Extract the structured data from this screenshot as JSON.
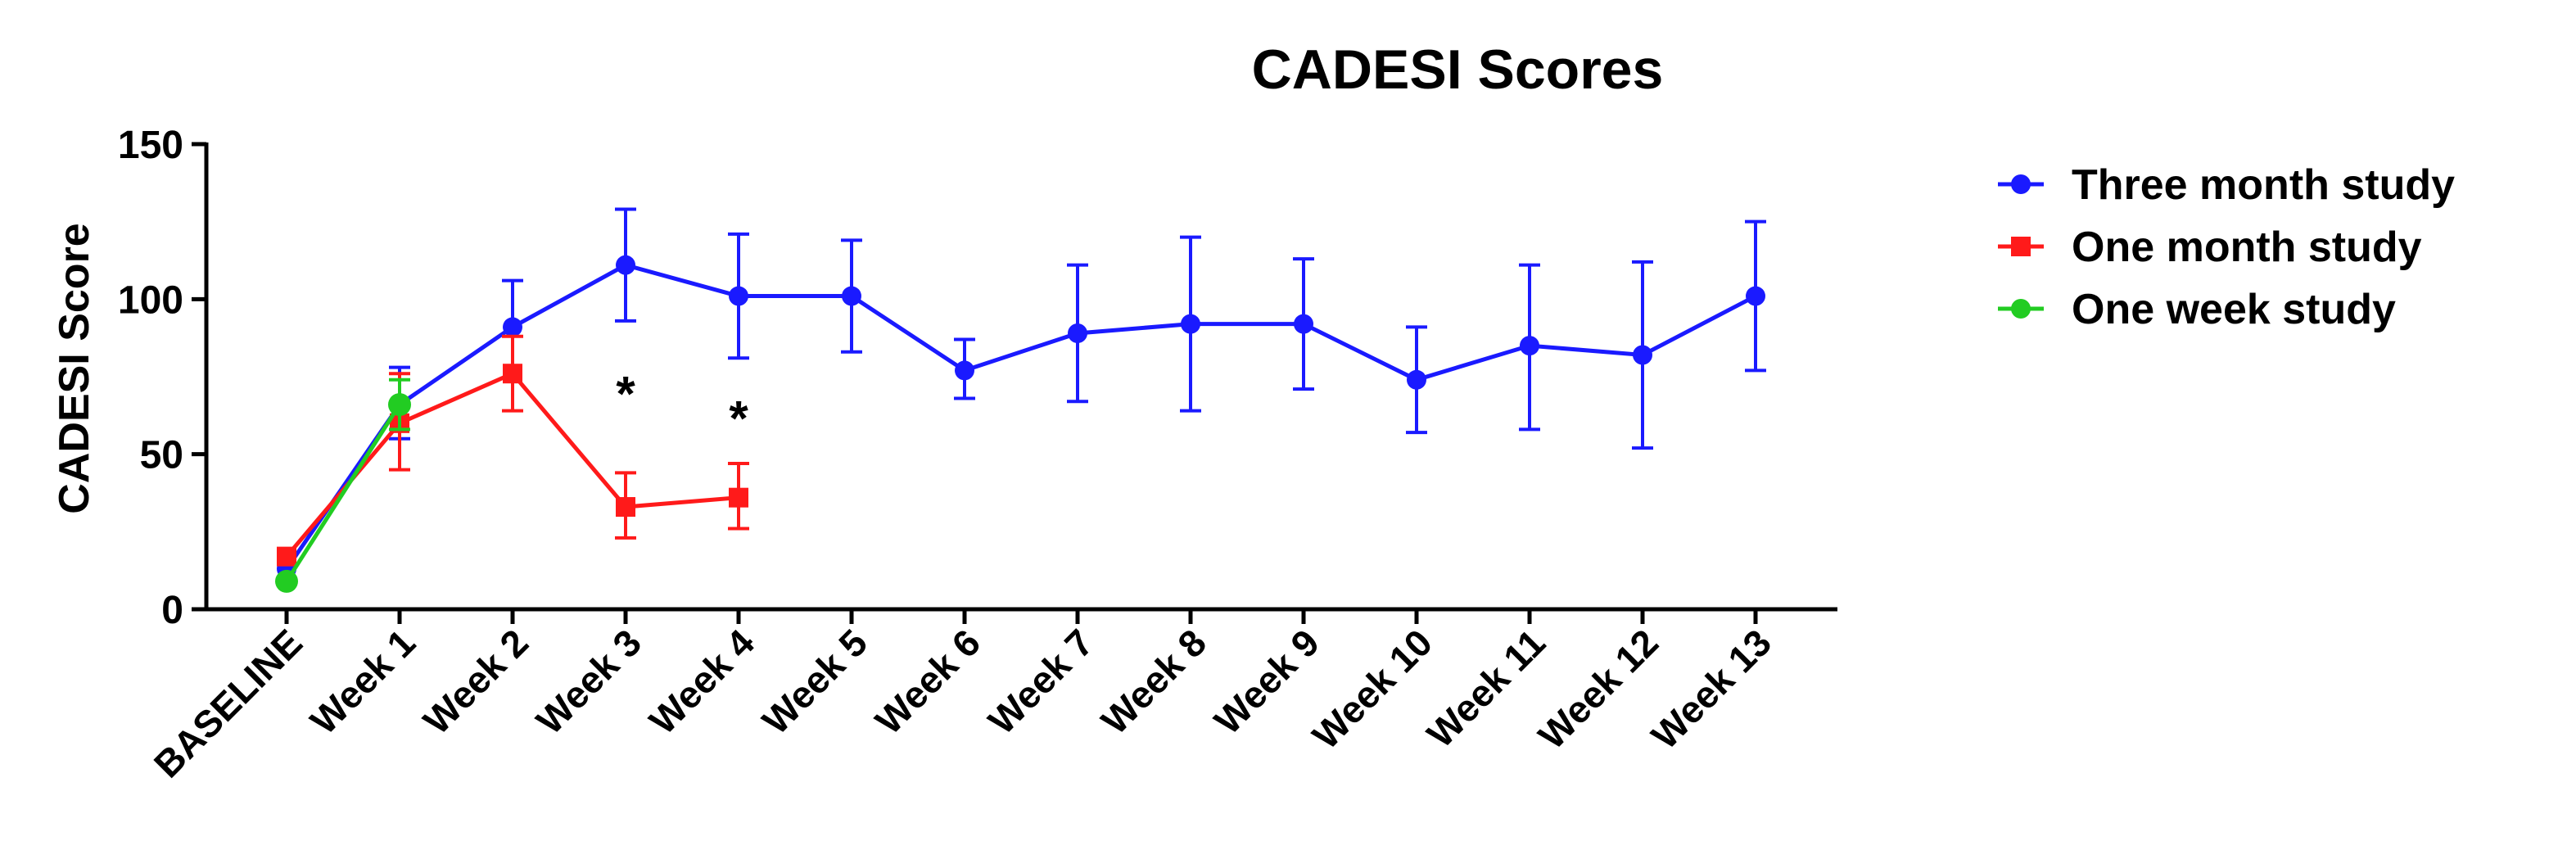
{
  "chart_data": {
    "type": "line",
    "title": "CADESI Scores",
    "xlabel": "",
    "ylabel": "CADESI Score",
    "categories": [
      "BASELINE",
      "Week 1",
      "Week 2",
      "Week 3",
      "Week 4",
      "Week 5",
      "Week 6",
      "Week 7",
      "Week 8",
      "Week 9",
      "Week 10",
      "Week 11",
      "Week 12",
      "Week 13"
    ],
    "ylim": [
      0,
      150
    ],
    "yticks": [
      0,
      50,
      100,
      150
    ],
    "legend_position": "right",
    "grid": false,
    "series": [
      {
        "name": "Three month study",
        "color": "#1a1aff",
        "marker": "circle",
        "points": [
          {
            "x": "BASELINE",
            "y": 13,
            "lo": 13,
            "hi": 13
          },
          {
            "x": "Week 1",
            "y": 66,
            "lo": 55,
            "hi": 78
          },
          {
            "x": "Week 2",
            "y": 91,
            "lo": 91,
            "hi": 106
          },
          {
            "x": "Week 3",
            "y": 111,
            "lo": 93,
            "hi": 129
          },
          {
            "x": "Week 4",
            "y": 101,
            "lo": 81,
            "hi": 121
          },
          {
            "x": "Week 5",
            "y": 101,
            "lo": 83,
            "hi": 119
          },
          {
            "x": "Week 6",
            "y": 77,
            "lo": 68,
            "hi": 87
          },
          {
            "x": "Week 7",
            "y": 89,
            "lo": 67,
            "hi": 111
          },
          {
            "x": "Week 8",
            "y": 92,
            "lo": 64,
            "hi": 120
          },
          {
            "x": "Week 9",
            "y": 92,
            "lo": 71,
            "hi": 113
          },
          {
            "x": "Week 10",
            "y": 74,
            "lo": 57,
            "hi": 91
          },
          {
            "x": "Week 11",
            "y": 85,
            "lo": 58,
            "hi": 111
          },
          {
            "x": "Week 12",
            "y": 82,
            "lo": 52,
            "hi": 112
          },
          {
            "x": "Week 13",
            "y": 101,
            "lo": 77,
            "hi": 125
          }
        ]
      },
      {
        "name": "One month study",
        "color": "#ff1a1a",
        "marker": "square",
        "points": [
          {
            "x": "BASELINE",
            "y": 17,
            "lo": 17,
            "hi": 17
          },
          {
            "x": "Week 1",
            "y": 60,
            "lo": 45,
            "hi": 76
          },
          {
            "x": "Week 2",
            "y": 76,
            "lo": 64,
            "hi": 88
          },
          {
            "x": "Week 3",
            "y": 33,
            "lo": 23,
            "hi": 44
          },
          {
            "x": "Week 4",
            "y": 36,
            "lo": 26,
            "hi": 47
          }
        ]
      },
      {
        "name": "One week study",
        "color": "#22cc22",
        "marker": "circle",
        "points": [
          {
            "x": "BASELINE",
            "y": 9,
            "lo": 9,
            "hi": 9
          },
          {
            "x": "Week 1",
            "y": 66,
            "lo": 58,
            "hi": 74
          }
        ]
      }
    ],
    "annotations": [
      {
        "text": "*",
        "x": "Week 3",
        "y": 72
      },
      {
        "text": "*",
        "x": "Week 4",
        "y": 64
      }
    ]
  }
}
